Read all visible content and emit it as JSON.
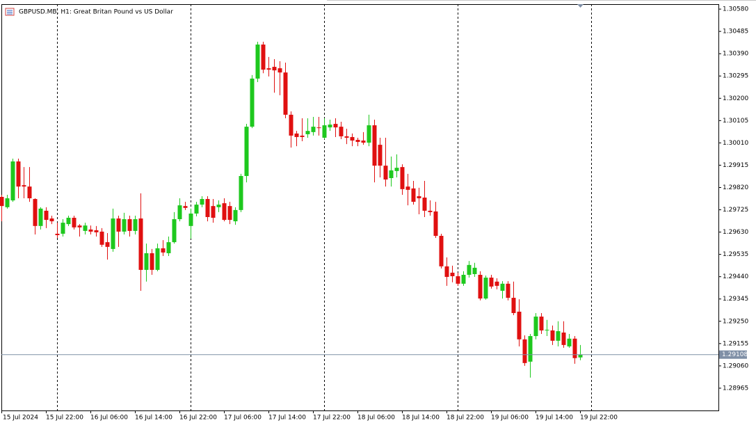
{
  "chart_data": {
    "type": "candlestick",
    "title": "GBPUSD.MB, H1:  Great Britan Pound vs US Dollar",
    "categories": [
      "15 Jul 2024",
      null,
      null,
      null,
      null,
      null,
      null,
      null,
      "15 Jul 22:00",
      null,
      null,
      null,
      null,
      null,
      null,
      null,
      "16 Jul 06:00",
      null,
      null,
      null,
      null,
      null,
      null,
      null,
      "16 Jul 14:00",
      null,
      null,
      null,
      null,
      null,
      null,
      null,
      "16 Jul 22:00",
      null,
      null,
      null,
      null,
      null,
      null,
      null,
      "17 Jul 06:00",
      null,
      null,
      null,
      null,
      null,
      null,
      null,
      "17 Jul 14:00",
      null,
      null,
      null,
      null,
      null,
      null,
      null,
      "17 Jul 22:00",
      null,
      null,
      null,
      null,
      null,
      null,
      null,
      "18 Jul 06:00",
      null,
      null,
      null,
      null,
      null,
      null,
      null,
      "18 Jul 14:00",
      null,
      null,
      null,
      null,
      null,
      null,
      null,
      "18 Jul 22:00",
      null,
      null,
      null,
      null,
      null,
      null,
      null,
      "19 Jul 06:00",
      null,
      null,
      null,
      null,
      null,
      null,
      null,
      "19 Jul 14:00",
      null,
      null,
      null,
      null,
      null,
      null,
      null,
      "19 Jul 22:00"
    ],
    "open": [
      1.2978,
      1.29736,
      1.29765,
      1.29931,
      1.2983,
      1.29824,
      1.29771,
      1.29656,
      1.29721,
      1.29688,
      1.29623,
      1.29623,
      1.29664,
      1.29691,
      1.29658,
      1.29635,
      1.29641,
      1.29638,
      1.29632,
      1.29587,
      1.29558,
      1.29688,
      1.29632,
      1.29685,
      1.29635,
      1.29688,
      1.29469,
      1.2954,
      1.29469,
      1.29561,
      1.2954,
      1.29587,
      1.29685,
      1.29741,
      1.29656,
      1.29709,
      1.29747,
      1.29771,
      1.29741,
      1.29736,
      1.29753,
      1.29741,
      1.29676,
      1.29724,
      1.29869,
      1.30079,
      1.30284,
      1.30429,
      1.30328,
      1.30334,
      1.30328,
      1.3031,
      1.3013,
      1.3005,
      1.30041,
      1.30047,
      1.30056,
      1.30076,
      1.30032,
      1.30076,
      1.30091,
      1.30079,
      1.30038,
      1.30035,
      1.30023,
      1.3002,
      1.30011,
      1.30085,
      1.30002,
      1.29913,
      1.2986,
      1.2989,
      1.29907,
      1.29824,
      1.29816,
      1.29783,
      1.29777,
      1.29721,
      1.29718,
      1.29614,
      1.29484,
      1.29457,
      1.29442,
      1.2941,
      1.29448,
      1.29451,
      1.29448,
      1.29347,
      1.29436,
      1.29419,
      1.2938,
      1.2941,
      1.2935,
      1.29291,
      1.29173,
      1.29078,
      1.29187,
      1.2927,
      1.29211,
      1.29211,
      1.29167,
      1.29202,
      1.29143,
      1.29176,
      1.29096
    ],
    "high": [
      1.29789,
      1.29789,
      1.29943,
      1.29943,
      1.29907,
      1.29907,
      1.29774,
      1.29736,
      1.29736,
      1.297,
      1.2967,
      1.29685,
      1.297,
      1.297,
      1.29664,
      1.2967,
      1.29658,
      1.29656,
      1.29647,
      1.29626,
      1.2973,
      1.297,
      1.29712,
      1.297,
      1.297,
      1.29795,
      1.29581,
      1.29558,
      1.29581,
      1.29596,
      1.29611,
      1.29715,
      1.29774,
      1.29759,
      1.2973,
      1.29759,
      1.29783,
      1.29783,
      1.29771,
      1.29765,
      1.29774,
      1.29759,
      1.29736,
      1.29878,
      1.30091,
      1.30299,
      1.30441,
      1.30441,
      1.30376,
      1.30367,
      1.30358,
      1.30352,
      1.30144,
      1.30061,
      1.30115,
      1.30115,
      1.30121,
      1.30121,
      1.30115,
      1.30109,
      1.30115,
      1.301,
      1.3007,
      1.3005,
      1.30032,
      1.30056,
      1.3013,
      1.30109,
      1.30032,
      1.30032,
      1.29952,
      1.29961,
      1.29919,
      1.29878,
      1.29848,
      1.29819,
      1.29848,
      1.29765,
      1.29759,
      1.29623,
      1.29522,
      1.29487,
      1.29457,
      1.29463,
      1.29507,
      1.29499,
      1.29463,
      1.29445,
      1.29448,
      1.29433,
      1.29421,
      1.29421,
      1.29419,
      1.29344,
      1.2919,
      1.29196,
      1.29285,
      1.29285,
      1.29256,
      1.29232,
      1.2925,
      1.2925,
      1.29196,
      1.29187,
      1.29149
    ],
    "low": [
      1.29676,
      1.2973,
      1.29759,
      1.29774,
      1.29774,
      1.29759,
      1.2962,
      1.29641,
      1.29647,
      1.29664,
      1.29605,
      1.29611,
      1.29656,
      1.29641,
      1.29611,
      1.2962,
      1.2962,
      1.29611,
      1.29567,
      1.29513,
      1.29546,
      1.29567,
      1.2962,
      1.29611,
      1.2962,
      1.2938,
      1.29419,
      1.29448,
      1.29463,
      1.29528,
      1.29528,
      1.29581,
      1.29676,
      1.29724,
      1.29602,
      1.29697,
      1.29736,
      1.29676,
      1.2967,
      1.29715,
      1.29676,
      1.29664,
      1.29661,
      1.29715,
      1.29842,
      1.30073,
      1.30269,
      1.30307,
      1.30293,
      1.30224,
      1.30213,
      1.30115,
      1.2999,
      1.29996,
      1.30017,
      1.30032,
      1.30041,
      1.30041,
      1.30026,
      1.30061,
      1.30035,
      1.30026,
      1.30005,
      1.29996,
      1.29996,
      1.30002,
      1.29996,
      1.29842,
      1.29863,
      1.29824,
      1.29824,
      1.29863,
      1.29789,
      1.29744,
      1.29747,
      1.29706,
      1.29694,
      1.297,
      1.29605,
      1.29475,
      1.29401,
      1.29416,
      1.29401,
      1.29401,
      1.29436,
      1.29439,
      1.29339,
      1.29342,
      1.29389,
      1.29386,
      1.29347,
      1.29339,
      1.29276,
      1.29143,
      1.2906,
      1.2901,
      1.29173,
      1.29196,
      1.29187,
      1.29149,
      1.29143,
      1.29137,
      1.29137,
      1.29069,
      1.29084
    ],
    "close": [
      1.29741,
      1.29774,
      1.29931,
      1.29824,
      1.29824,
      1.29774,
      1.29656,
      1.2973,
      1.29682,
      1.29676,
      1.29617,
      1.2967,
      1.29691,
      1.2965,
      1.2965,
      1.29658,
      1.29632,
      1.29629,
      1.29576,
      1.29567,
      1.29688,
      1.29632,
      1.29685,
      1.29635,
      1.29685,
      1.29469,
      1.2954,
      1.29469,
      1.29561,
      1.29543,
      1.29587,
      1.29685,
      1.29744,
      1.29733,
      1.29709,
      1.29747,
      1.29771,
      1.29694,
      1.29691,
      1.29747,
      1.29682,
      1.29682,
      1.29724,
      1.29869,
      1.30079,
      1.30284,
      1.30429,
      1.30322,
      1.30322,
      1.30319,
      1.3031,
      1.3013,
      1.30041,
      1.30035,
      1.30035,
      1.30061,
      1.30079,
      1.30073,
      1.30085,
      1.30088,
      1.30076,
      1.30038,
      1.30032,
      1.3002,
      1.30014,
      1.30011,
      1.30085,
      1.29913,
      1.29913,
      1.29854,
      1.29893,
      1.29904,
      1.29813,
      1.2981,
      1.29759,
      1.29774,
      1.29721,
      1.29715,
      1.29614,
      1.29484,
      1.29439,
      1.29442,
      1.2941,
      1.29448,
      1.2949,
      1.29478,
      1.29347,
      1.29436,
      1.29398,
      1.29401,
      1.2941,
      1.2935,
      1.29285,
      1.29173,
      1.29072,
      1.29187,
      1.2927,
      1.29211,
      1.29214,
      1.29167,
      1.29208,
      1.29149,
      1.29176,
      1.29093,
      1.29108
    ],
    "up_color": "#1ec81e",
    "down_color": "#e01010",
    "ylim": [
      1.2887,
      1.30601
    ],
    "yticks": [
      {
        "value": 1.3058,
        "label": "1.30580"
      },
      1.30485,
      {
        "value": 1.3039,
        "label": "1.30390"
      },
      1.30295,
      {
        "value": 1.302,
        "label": "1.30200"
      },
      1.30105,
      {
        "value": 1.3001,
        "label": "1.30010"
      },
      1.29915,
      {
        "value": 1.2982,
        "label": "1.29820"
      },
      1.29725,
      {
        "value": 1.2963,
        "label": "1.29630"
      },
      1.29535,
      {
        "value": 1.2944,
        "label": "1.29440"
      },
      1.29345,
      {
        "value": 1.2925,
        "label": "1.29250"
      },
      1.29155,
      {
        "value": 1.2906,
        "label": "1.29060"
      },
      1.28965
    ],
    "current_price": 1.29108
  }
}
